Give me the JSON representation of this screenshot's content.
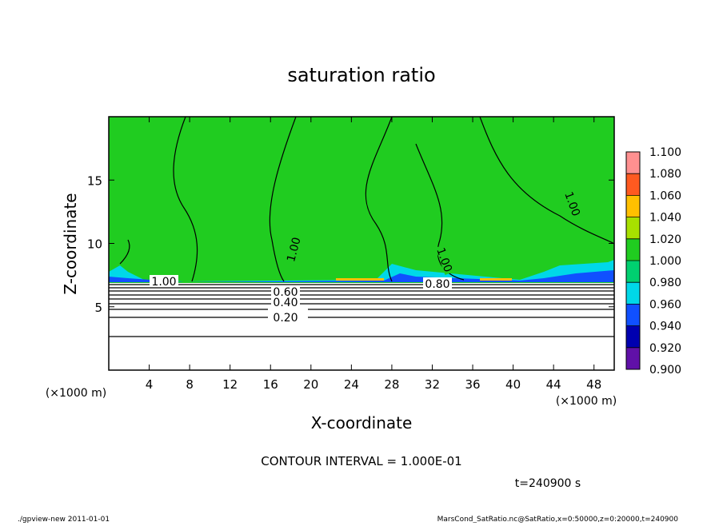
{
  "chart_data": {
    "type": "contour",
    "title": "saturation ratio",
    "xlabel": "X-coordinate",
    "ylabel": "Z-coordinate",
    "xunit_left": "(×1000 m)",
    "xunit_right": "(×1000 m)",
    "xlim": [
      0,
      50
    ],
    "ylim": [
      0,
      20
    ],
    "xticks": [
      4,
      8,
      12,
      16,
      20,
      24,
      28,
      32,
      36,
      40,
      44,
      48
    ],
    "yticks": [
      5,
      10,
      15
    ],
    "contour_labels": [
      "1.00",
      "0.60",
      "0.40",
      "0.20",
      "1.00",
      "0.80",
      "1.00",
      "1.00"
    ],
    "colorbar": {
      "ticks": [
        {
          "value": 0.9,
          "label": "0.900"
        },
        {
          "value": 0.92,
          "label": "0.920"
        },
        {
          "value": 0.94,
          "label": "0.940"
        },
        {
          "value": 0.96,
          "label": "0.960"
        },
        {
          "value": 0.98,
          "label": "0.980"
        },
        {
          "value": 1.0,
          "label": "1.000"
        },
        {
          "value": 1.02,
          "label": "1.020"
        },
        {
          "value": 1.04,
          "label": "1.040"
        },
        {
          "value": 1.06,
          "label": "1.060"
        },
        {
          "value": 1.08,
          "label": "1.080"
        },
        {
          "value": 1.1,
          "label": "1.100"
        }
      ],
      "colors": [
        "#6010a8",
        "#0000b0",
        "#1050ff",
        "#00d8e8",
        "#00d070",
        "#20cc20",
        "#a8e000",
        "#ffc000",
        "#ff5a20",
        "#ff9090"
      ]
    },
    "contour_interval": "CONTOUR INTERVAL = 1.000E-01",
    "time": "t=240900 s",
    "footer_left": "./gpview-new   2011-01-01",
    "footer_right": "MarsCond_SatRatio.nc@SatRatio,x=0:50000,z=0:20000,t=240900"
  }
}
